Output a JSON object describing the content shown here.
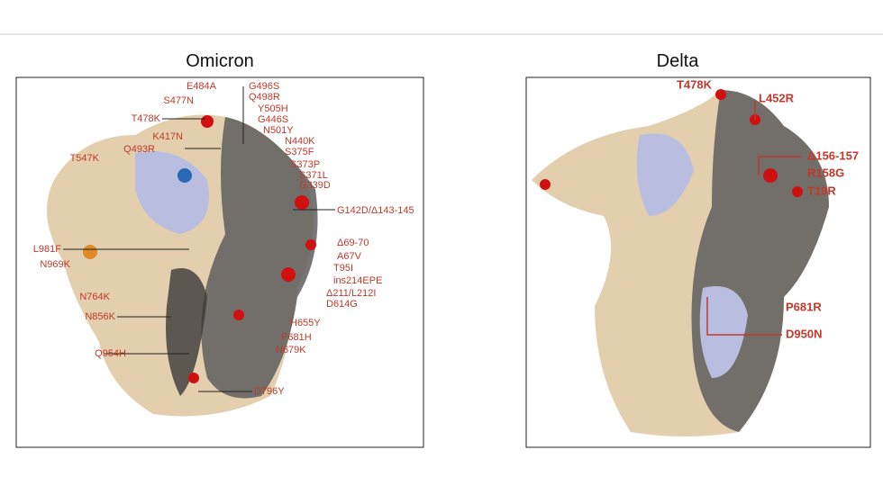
{
  "panels": [
    {
      "title": "Omicron",
      "labels": [
        "E484A",
        "S477N",
        "T478K",
        "K417N",
        "Q493R",
        "T547K",
        "G496S",
        "Q498R",
        "Y505H",
        "G446S",
        "N501Y",
        "N440K",
        "S375F",
        "S373P",
        "S371L",
        "G339D",
        "G142D/Δ143-145",
        "L981F",
        "N969K",
        "Δ69-70",
        "A67V",
        "T95I",
        "ins214EPE",
        "Δ211/L212I",
        "D614G",
        "N764K",
        "N856K",
        "H655Y",
        "P681H",
        "N679K",
        "Q954H",
        "D796Y"
      ]
    },
    {
      "title": "Delta",
      "labels": [
        "T478K",
        "L452R",
        "Δ156-157",
        "R158G",
        "T19R",
        "P681R",
        "D950N"
      ]
    }
  ]
}
